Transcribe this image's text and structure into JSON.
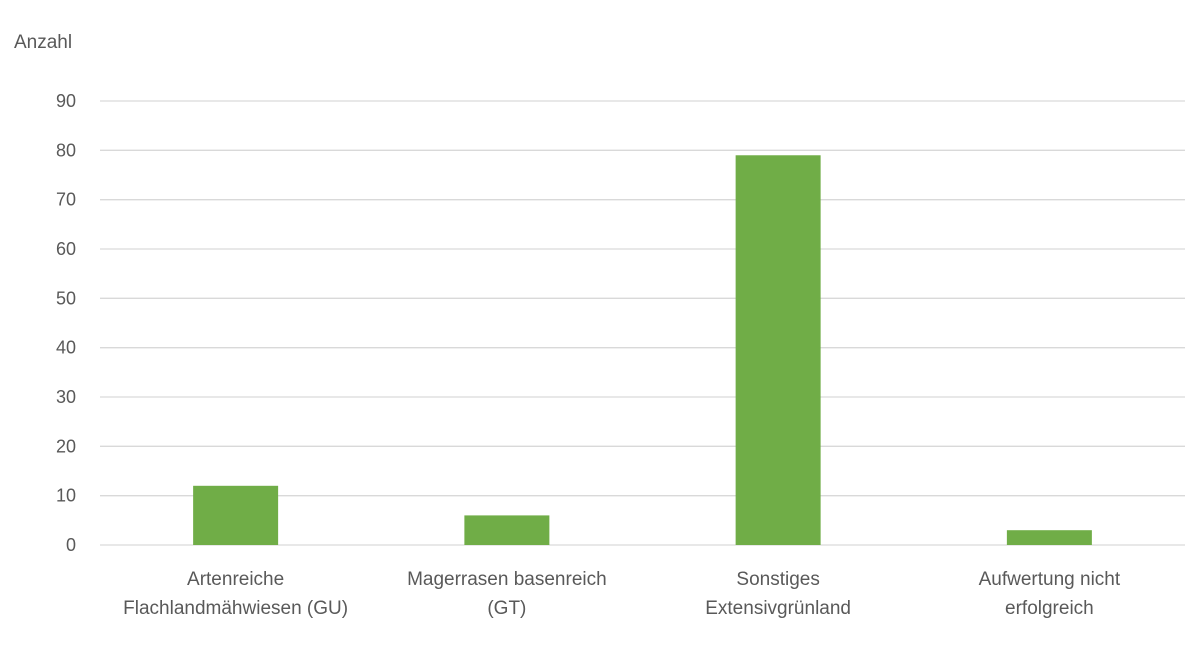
{
  "chart_data": {
    "type": "bar",
    "ylabel": "Anzahl",
    "categories": [
      [
        "Artenreiche",
        "Flachlandmähwiesen (GU)"
      ],
      [
        "Magerrasen basenreich",
        "(GT)"
      ],
      [
        "Sonstiges",
        "Extensivgrünland"
      ],
      [
        "Aufwertung nicht",
        "erfolgreich"
      ]
    ],
    "values": [
      12,
      6,
      79,
      3
    ],
    "ylim": [
      0,
      90
    ],
    "yticks": [
      0,
      10,
      20,
      30,
      40,
      50,
      60,
      70,
      80,
      90
    ],
    "grid": true,
    "legend": "none",
    "colors": {
      "bar": "#70ad47",
      "grid": "#d9d9d9",
      "axis": "#d9d9d9",
      "text": "#595959"
    }
  }
}
